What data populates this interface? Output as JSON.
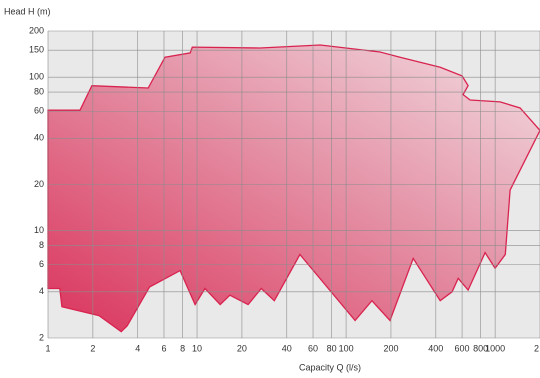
{
  "chart_data": {
    "type": "area",
    "x_label": "Capacity Q (l/s)",
    "y_label": "Head H (m)",
    "log_x": true,
    "log_y": true,
    "grid": true,
    "color": "#d9234f",
    "xlim": [
      1,
      2000
    ],
    "ylim": [
      2,
      200
    ],
    "xticks": [
      1,
      2,
      4,
      6,
      8,
      10,
      20,
      40,
      60,
      80,
      100,
      200,
      400,
      600,
      800,
      1000,
      {
        "value": 2000,
        "label": "2"
      }
    ],
    "yticks": [
      2,
      4,
      6,
      8,
      10,
      20,
      40,
      60,
      80,
      100,
      150,
      200
    ],
    "x": [
      1,
      1.64,
      1.97,
      4.7,
      6.1,
      9,
      9.3,
      26.5,
      67,
      169,
      230,
      428,
      600,
      659,
      610,
      679,
      1080,
      1470,
      2000,
      1260,
      1170,
      1000,
      857,
      659,
      565,
      514,
      428,
      282,
      197,
      149,
      115,
      49,
      33,
      27,
      22,
      16.6,
      14.3,
      11.3,
      9.7,
      7.7,
      4.8,
      3.4,
      3.1,
      2.2,
      1.24,
      1.2,
      1
    ],
    "values": [
      61,
      61,
      88,
      85,
      135,
      144,
      157,
      155,
      162,
      146,
      135,
      116,
      102,
      88,
      77,
      71,
      69,
      63,
      45,
      18.4,
      7.0,
      5.7,
      7.2,
      4.1,
      4.9,
      4.0,
      3.5,
      6.6,
      2.6,
      3.5,
      2.6,
      7.0,
      3.5,
      4.2,
      3.3,
      3.8,
      3.3,
      4.2,
      3.3,
      5.5,
      4.3,
      2.4,
      2.2,
      2.8,
      3.2,
      4.2,
      4.2
    ]
  }
}
